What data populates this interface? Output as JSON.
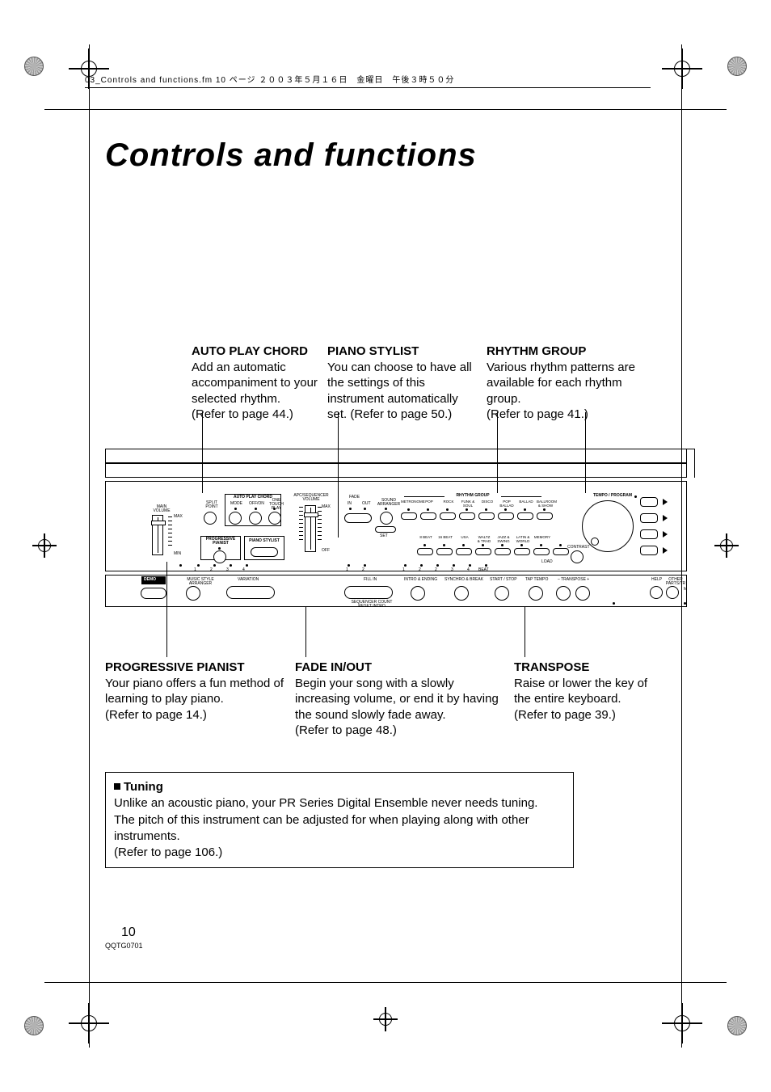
{
  "header_line": "03_Controls and functions.fm  10 ページ  ２００３年５月１６日　金曜日　午後３時５０分",
  "title": "Controls and functions",
  "callouts": {
    "auto_play_chord": {
      "title": "AUTO PLAY CHORD",
      "body": "Add an automatic accompaniment to your selected rhythm.\n(Refer to page 44.)"
    },
    "piano_stylist": {
      "title": "PIANO STYLIST",
      "body": "You can choose to have all the settings of this instrument automatically set. (Refer to page 50.)"
    },
    "rhythm_group": {
      "title": "RHYTHM GROUP",
      "body": "Various rhythm patterns are available for each rhythm group.\n(Refer to page 41.)"
    },
    "progressive_pianist": {
      "title": "PROGRESSIVE PIANIST",
      "body": "Your piano offers a fun method of learning to play piano.\n(Refer to page 14.)"
    },
    "fade": {
      "title": "FADE IN/OUT",
      "body": "Begin your song with a slowly increasing volume, or end it by having the sound slowly fade away.\n(Refer to page 48.)"
    },
    "transpose": {
      "title": "TRANSPOSE",
      "body": "Raise or lower the key of the entire keyboard.\n(Refer to page 39.)"
    }
  },
  "panel": {
    "main_volume": "MAIN\nVOLUME",
    "max": "MAX",
    "min": "MIN",
    "split_point": "SPLIT\nPOINT",
    "auto_play_chord": "AUTO PLAY CHORD",
    "mode": "MODE",
    "off_on": "OFF/ON",
    "one_touch_play": "ONE TOUCH\nPLAY",
    "progressive_pianist": "PROGRESSIVE\nPIANIST",
    "piano_stylist": "PIANO STYLIST",
    "apc_sequencer_volume": "APC/SEQUENCER\nVOLUME",
    "off": "OFF",
    "fade": "FADE",
    "in": "IN",
    "out": "OUT",
    "sound_arranger": "SOUND\nARRANGER",
    "set": "SET",
    "rhythm_group": "RHYTHM GROUP",
    "rg1": [
      "METRONOME",
      "POP",
      "ROCK",
      "FUNK &\nSOUL",
      "DISCO",
      "POP BALLAD",
      "BALLAD",
      "BALLROOM\n& SHOW"
    ],
    "rg2": [
      "8 BEAT",
      "16 BEAT",
      "USA",
      "WALTZ\n& TRAD",
      "JAZZ &\nSWING",
      "LATIN &\nWORLD",
      "MEMORY",
      ""
    ],
    "load": "LOAD",
    "tempo_program": "TEMPO / PROGRAM",
    "contrast": "CONTRAST",
    "demo": "DEMO",
    "music_style_arranger": "MUSIC STYLE ARRANGER",
    "variation": "VARIATION",
    "fill_in": "FILL IN",
    "sequencer_count_reset_intro": "SEQUENCER COUNT\nRESET  INTRO",
    "intro_ending": "INTRO & ENDING",
    "synchro_break": "SYNCHRO & BREAK",
    "start_stop": "START / STOP",
    "tap_tempo": "TAP TEMPO",
    "transpose_minus": "– TRANSPOSE +",
    "help": "HELP",
    "other_parts": "OTHER PARTS/TR",
    "m": "M"
  },
  "tuning": {
    "title": "Tuning",
    "body": "Unlike an acoustic piano, your PR Series Digital Ensemble never needs tuning.\nThe pitch of this instrument can be adjusted for when playing along with other instruments.\n(Refer to page 106.)"
  },
  "page_number": "10",
  "doc_code": "QQTG0701",
  "colors": {
    "fg": "#000000",
    "bg": "#ffffff"
  }
}
